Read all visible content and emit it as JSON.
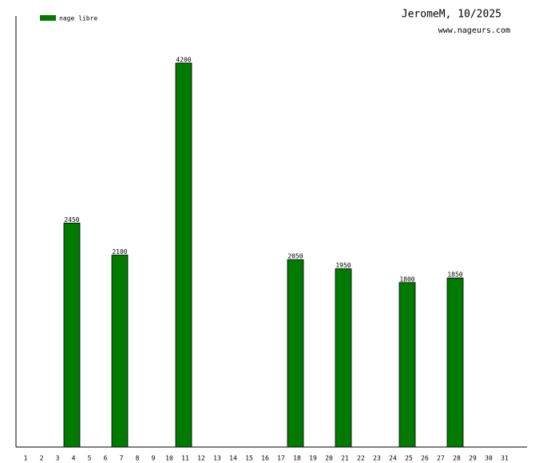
{
  "chart_data": {
    "type": "bar",
    "title": "JeromeM, 10/2025",
    "subtitle": "www.nageurs.com",
    "categories": [
      1,
      2,
      3,
      4,
      5,
      6,
      7,
      8,
      9,
      10,
      11,
      12,
      13,
      14,
      15,
      16,
      17,
      18,
      19,
      20,
      21,
      22,
      23,
      24,
      25,
      26,
      27,
      28,
      29,
      30,
      31
    ],
    "series": [
      {
        "name": "nage libre",
        "color": "#007a00",
        "values": [
          null,
          null,
          null,
          2450,
          null,
          null,
          2100,
          null,
          null,
          null,
          4200,
          null,
          null,
          null,
          null,
          null,
          null,
          2050,
          null,
          null,
          1950,
          null,
          null,
          null,
          1800,
          null,
          null,
          1850,
          null,
          null,
          null
        ]
      }
    ]
  }
}
